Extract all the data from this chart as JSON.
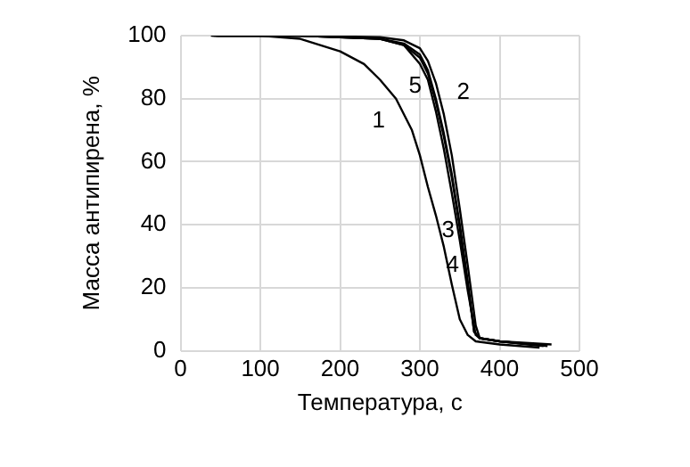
{
  "chart_data": {
    "type": "line",
    "xlabel": "Температура, с",
    "ylabel": "Масса антипирена, %",
    "xlim": [
      0,
      500
    ],
    "xticks": [
      0,
      100,
      200,
      300,
      400,
      500
    ],
    "ylim": [
      0,
      100
    ],
    "yticks": [
      0,
      20,
      40,
      60,
      80,
      100
    ],
    "grid": true,
    "legend": false,
    "marker": "none",
    "line_style": "solid",
    "series": [
      {
        "name": "1",
        "color": "#000000",
        "x": [
          38,
          100,
          150,
          200,
          230,
          250,
          270,
          290,
          300,
          310,
          320,
          330,
          340,
          350,
          360,
          370,
          400,
          450
        ],
        "values": [
          100,
          100,
          99,
          95,
          91,
          86,
          80,
          70,
          62,
          52,
          43,
          33,
          21,
          10,
          5,
          3,
          2,
          1
        ]
      },
      {
        "name": "2",
        "color": "#000000",
        "x": [
          40,
          150,
          250,
          280,
          300,
          310,
          320,
          330,
          340,
          350,
          360,
          370,
          375,
          400,
          465
        ],
        "values": [
          100,
          100,
          99.5,
          98.5,
          96,
          92,
          85,
          75,
          62,
          45,
          27,
          8,
          4,
          3,
          2
        ]
      },
      {
        "name": "3",
        "color": "#000000",
        "x": [
          42,
          150,
          250,
          280,
          300,
          310,
          320,
          330,
          340,
          350,
          360,
          368,
          375,
          400,
          460
        ],
        "values": [
          100,
          100,
          99,
          97.5,
          94,
          89,
          80,
          69,
          56,
          40,
          22,
          6,
          4,
          3,
          1.5
        ]
      },
      {
        "name": "4",
        "color": "#000000",
        "x": [
          44,
          150,
          250,
          280,
          300,
          310,
          320,
          330,
          340,
          350,
          360,
          368,
          375,
          400,
          455
        ],
        "values": [
          100,
          100,
          99,
          97,
          93,
          88,
          79,
          68,
          55,
          39,
          21,
          6,
          4,
          3,
          1.5
        ]
      },
      {
        "name": "5",
        "color": "#000000",
        "x": [
          46,
          150,
          250,
          280,
          300,
          310,
          320,
          330,
          340,
          350,
          360,
          370,
          375,
          400,
          442
        ],
        "values": [
          100,
          100,
          99,
          97,
          91,
          86,
          76,
          64,
          50,
          35,
          19,
          5,
          4,
          3,
          2
        ]
      }
    ]
  }
}
